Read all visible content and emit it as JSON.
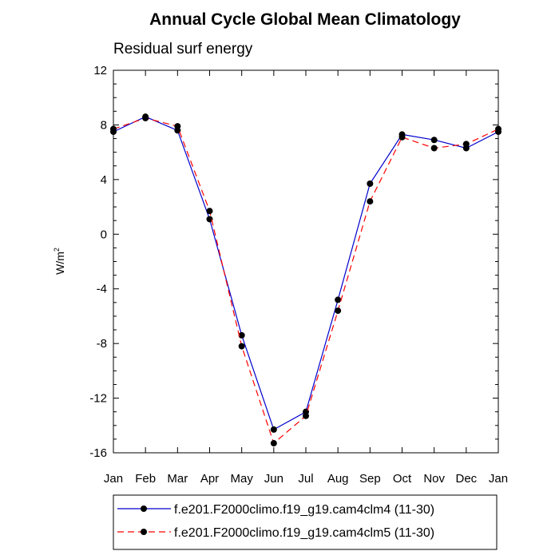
{
  "chart_data": {
    "type": "line",
    "title": "Annual Cycle Global Mean Climatology",
    "subtitle": "Residual surf energy",
    "ylabel": "W/m",
    "ylabel_superscript": "2",
    "categories": [
      "Jan",
      "Feb",
      "Mar",
      "Apr",
      "May",
      "Jun",
      "Jul",
      "Aug",
      "Sep",
      "Oct",
      "Nov",
      "Dec",
      "Jan"
    ],
    "ylim": [
      -16,
      12
    ],
    "yticks": [
      "12",
      "8",
      "4",
      "0",
      "-4",
      "-8",
      "-12",
      "-16"
    ],
    "series": [
      {
        "name": "f.e201.F2000climo.f19_g19.cam4clm4 (11-30)",
        "color": "#0000cc",
        "dash": "solid",
        "values": [
          7.5,
          8.6,
          7.6,
          1.1,
          -7.4,
          -14.3,
          -13.0,
          -4.8,
          3.7,
          7.3,
          6.9,
          6.3,
          7.5
        ]
      },
      {
        "name": "f.e201.F2000climo.f19_g19.cam4clm5 (11-30)",
        "color": "#ff0000",
        "dash": "dashed",
        "values": [
          7.7,
          8.5,
          7.9,
          1.7,
          -8.2,
          -15.3,
          -13.3,
          -5.6,
          2.4,
          7.1,
          6.3,
          6.6,
          7.7
        ]
      }
    ],
    "legend_placement": "bottom",
    "grid": false,
    "marker": "filled-circle"
  }
}
